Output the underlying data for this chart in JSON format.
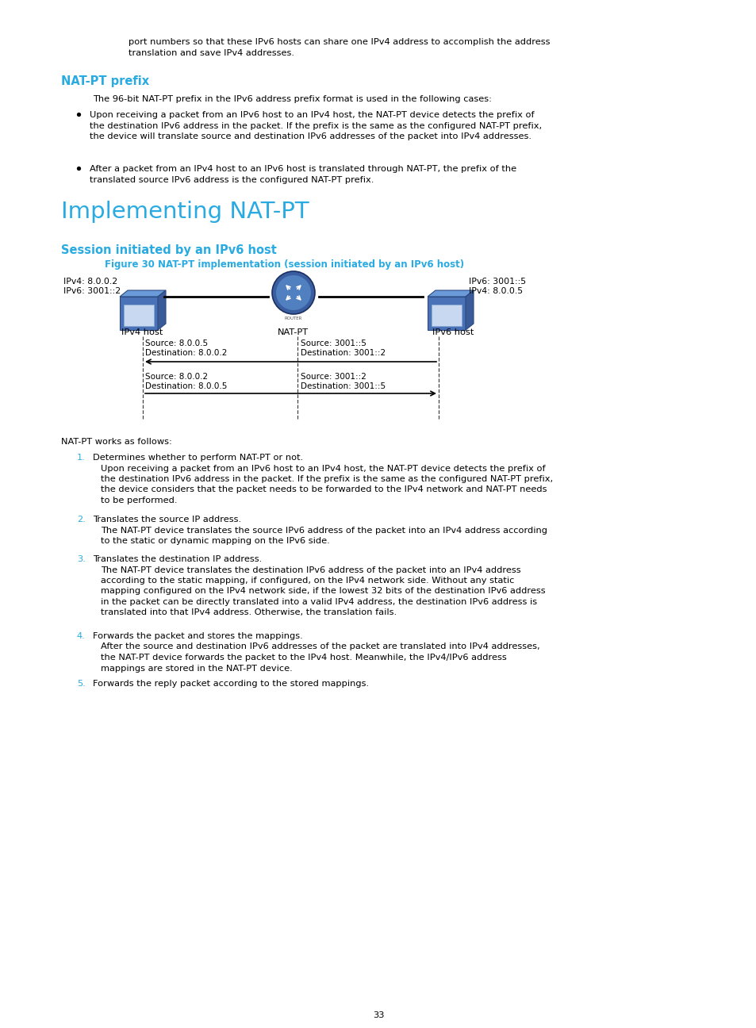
{
  "bg_color": "#ffffff",
  "text_color": "#000000",
  "cyan_color": "#29abe2",
  "page_number": "33",
  "body_text_size": 8.2,
  "intro_line1": "port numbers so that these IPv6 hosts can share one IPv4 address to accomplish the address",
  "intro_line2": "translation and save IPv4 addresses.",
  "section1_heading": "NAT-PT prefix",
  "section1_para": "The 96-bit NAT-PT prefix in the IPv6 address prefix format is used in the following cases:",
  "bullet1_line1": "Upon receiving a packet from an IPv6 host to an IPv4 host, the NAT-PT device detects the prefix of",
  "bullet1_line2": "the destination IPv6 address in the packet. If the prefix is the same as the configured NAT-PT prefix,",
  "bullet1_line3": "the device will translate source and destination IPv6 addresses of the packet into IPv4 addresses.",
  "bullet2_line1": "After a packet from an IPv4 host to an IPv6 host is translated through NAT-PT, the prefix of the",
  "bullet2_line2": "translated source IPv6 address is the configured NAT-PT prefix.",
  "section2_heading": "Implementing NAT-PT",
  "section3_heading": "Session initiated by an IPv6 host",
  "figure_caption": "Figure 30 NAT-PT implementation (session initiated by an IPv6 host)",
  "ipv4_host_label1": "IPv4: 8.0.0.2",
  "ipv4_host_label2": "IPv6: 3001::2",
  "ipv6_host_label1": "IPv6: 3001::5",
  "ipv6_host_label2": "IPv4: 8.0.0.5",
  "host_label_ipv4": "IPv4 host",
  "host_label_natpt": "NAT-PT",
  "host_label_ipv6": "IPv6 host",
  "pkt1_src": "Source: 8.0.0.5",
  "pkt1_dst": "Destination: 8.0.0.2",
  "pkt1_right_src": "Source: 3001::5",
  "pkt1_right_dst": "Destination: 3001::2",
  "pkt2_src": "Source: 8.0.0.2",
  "pkt2_dst": "Destination: 8.0.0.5",
  "pkt2_right_src": "Source: 3001::2",
  "pkt2_right_dst": "Destination: 3001::5",
  "natpt_works": "NAT-PT works as follows:",
  "step1_num": "1.",
  "step1_title": "Determines whether to perform NAT-PT or not.",
  "step1_para1": "Upon receiving a packet from an IPv6 host to an IPv4 host, the NAT-PT device detects the prefix of",
  "step1_para2": "the destination IPv6 address in the packet. If the prefix is the same as the configured NAT-PT prefix,",
  "step1_para3": "the device considers that the packet needs to be forwarded to the IPv4 network and NAT-PT needs",
  "step1_para4": "to be performed.",
  "step2_num": "2.",
  "step2_title": "Translates the source IP address.",
  "step2_para1": "The NAT-PT device translates the source IPv6 address of the packet into an IPv4 address according",
  "step2_para2": "to the static or dynamic mapping on the IPv6 side.",
  "step3_num": "3.",
  "step3_title": "Translates the destination IP address.",
  "step3_para1": "The NAT-PT device translates the destination IPv6 address of the packet into an IPv4 address",
  "step3_para2": "according to the static mapping, if configured, on the IPv4 network side. Without any static",
  "step3_para3": "mapping configured on the IPv4 network side, if the lowest 32 bits of the destination IPv6 address",
  "step3_para4": "in the packet can be directly translated into a valid IPv4 address, the destination IPv6 address is",
  "step3_para5": "translated into that IPv4 address. Otherwise, the translation fails.",
  "step4_num": "4.",
  "step4_title": "Forwards the packet and stores the mappings.",
  "step4_para1": "After the source and destination IPv6 addresses of the packet are translated into IPv4 addresses,",
  "step4_para2": "the NAT-PT device forwards the packet to the IPv4 host. Meanwhile, the IPv4/IPv6 address",
  "step4_para3": "mappings are stored in the NAT-PT device.",
  "step5_num": "5.",
  "step5_title": "Forwards the reply packet according to the stored mappings."
}
